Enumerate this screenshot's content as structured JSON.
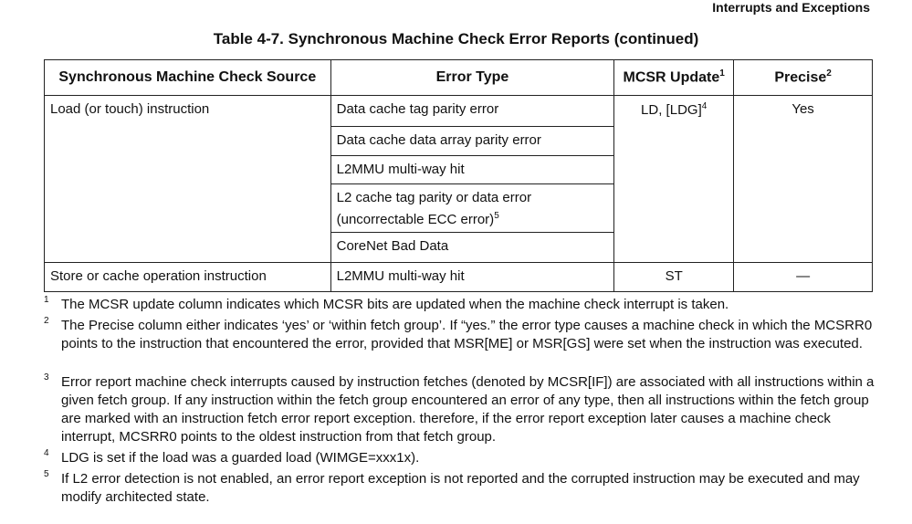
{
  "running_head": "Interrupts and Exceptions",
  "caption": "Table 4-7. Synchronous Machine Check Error Reports (continued)",
  "headers": {
    "source": "Synchronous Machine Check Source",
    "error_type": "Error Type",
    "mcsr": "MCSR Update",
    "mcsr_note": "1",
    "precise": "Precise",
    "precise_note": "2"
  },
  "rows": [
    {
      "source": "Load (or touch) instruction",
      "mcsr": "LD, [LDG]",
      "mcsr_note": "4",
      "precise": "Yes",
      "errors": [
        "Data cache tag parity error",
        "Data cache data array parity error",
        "L2MMU multi-way hit",
        "L2 cache tag parity or data error",
        "(uncorrectable ECC error)",
        "CoreNet Bad Data"
      ],
      "error_note": "5"
    },
    {
      "source": "Store or cache operation instruction",
      "error": "L2MMU multi-way hit",
      "mcsr": "ST",
      "precise": "—"
    }
  ],
  "footnotes": [
    {
      "n": "1",
      "text": "The MCSR update column indicates which MCSR bits are updated when the machine check interrupt is taken."
    },
    {
      "n": "2",
      "text": "The Precise column either indicates ‘yes’ or ‘within fetch group’. If “yes.” the error type causes a machine check in which the MCSRR0 points to the instruction that encountered the error, provided that MSR[ME] or MSR[GS] were set when the instruction was executed."
    },
    {
      "n": "3",
      "text": "Error report machine check interrupts caused by instruction fetches (denoted by MCSR[IF]) are associated with all instructions within a given fetch group. If any instruction within the fetch group encountered an error of any type, then all instructions within the fetch group are marked with an instruction fetch error report exception. therefore, if the error report exception later causes a machine check interrupt, MCSRR0 points to the oldest instruction from that fetch group."
    },
    {
      "n": "4",
      "text": "LDG is set if the load was a guarded load (WIMGE=xxx1x)."
    },
    {
      "n": "5",
      "text": "If L2 error detection is not enabled, an error report exception is not reported and the corrupted instruction may be executed and may modify architected state."
    }
  ]
}
